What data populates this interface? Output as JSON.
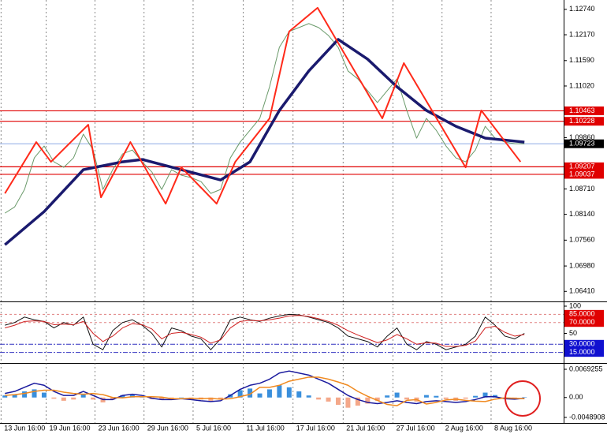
{
  "chart_data": [
    {
      "type": "line",
      "xlim": [
        -0.5,
        57
      ],
      "ylim": [
        1.0622,
        1.1295
      ],
      "xticks": [
        {
          "value": -0.4,
          "label": "13 Jun 16:00"
        },
        {
          "value": 4.2,
          "label": "19 Jun 16:00"
        },
        {
          "value": 9.2,
          "label": "23 Jun 16:00"
        },
        {
          "value": 14.2,
          "label": "29 Jun 16:00"
        },
        {
          "value": 19.2,
          "label": "5 Jul 16:00"
        },
        {
          "value": 24.3,
          "label": "11 Jul 16:00"
        },
        {
          "value": 29.4,
          "label": "17 Jul 16:00"
        },
        {
          "value": 34.5,
          "label": "21 Jul 16:00"
        },
        {
          "value": 39.6,
          "label": "27 Jul 16:00"
        },
        {
          "value": 44.6,
          "label": "2 Aug 16:00"
        },
        {
          "value": 49.6,
          "label": "8 Aug 16:00"
        }
      ],
      "yticks": [
        {
          "value": 1.1274,
          "label": "1.12740"
        },
        {
          "value": 1.1217,
          "label": "1.12170"
        },
        {
          "value": 1.1159,
          "label": "1.11590"
        },
        {
          "value": 1.1102,
          "label": "1.11020"
        },
        {
          "value": 1.0986,
          "label": "1.09860"
        },
        {
          "value": 1.0871,
          "label": "1.08710"
        },
        {
          "value": 1.0814,
          "label": "1.08140"
        },
        {
          "value": 1.0756,
          "label": "1.07560"
        },
        {
          "value": 1.0698,
          "label": "1.06980"
        },
        {
          "value": 1.0641,
          "label": "1.06410"
        }
      ],
      "levels": [
        {
          "value": 1.10463,
          "color": "#e00000",
          "box": "#e00000"
        },
        {
          "value": 1.10228,
          "color": "#e00000",
          "box": "#e00000"
        },
        {
          "value": 1.09723,
          "color": "#9ab4e8",
          "box": "#000000"
        },
        {
          "value": 1.09207,
          "color": "#e00000",
          "box": "#e00000"
        },
        {
          "value": 1.09037,
          "color": "#e00000",
          "box": "#e00000"
        }
      ],
      "x": [
        0,
        1,
        2,
        3,
        4,
        5,
        6,
        7,
        8,
        9,
        10,
        11,
        12,
        13,
        14,
        15,
        16,
        17,
        18,
        19,
        20,
        21,
        22,
        23,
        24,
        25,
        26,
        27,
        28,
        29,
        30,
        31,
        32,
        33,
        34,
        35,
        36,
        37,
        38,
        39,
        40,
        41,
        42,
        43,
        44,
        45,
        46,
        47,
        48,
        49,
        50,
        51,
        52,
        53
      ],
      "series": [
        {
          "color": "#6a9a6a",
          "line_width": 1,
          "values": [
            1.08166,
            1.08307,
            1.08697,
            1.09407,
            1.09673,
            1.09318,
            1.09194,
            1.09407,
            1.09939,
            1.09584,
            1.08697,
            1.09141,
            1.09495,
            1.09584,
            1.09318,
            1.09088,
            1.08697,
            1.09141,
            1.09017,
            1.08963,
            1.08875,
            1.08609,
            1.08697,
            1.09407,
            1.09761,
            1.10027,
            1.10293,
            1.11002,
            1.11889,
            1.12244,
            1.12332,
            1.12421,
            1.12332,
            1.12155,
            1.11889,
            1.11357,
            1.1118,
            1.10914,
            1.10648,
            1.10914,
            1.1118,
            1.10471,
            1.0985,
            1.10293,
            1.10027,
            1.09673,
            1.09407,
            1.09318,
            1.09584,
            1.10116,
            1.0985,
            1.09761,
            1.09726,
            1.09723
          ]
        },
        {
          "color": "#1a1a6e",
          "line_width": 3.5,
          "x": [
            0,
            4,
            8,
            12,
            14,
            18,
            22,
            25,
            28,
            31,
            34,
            37,
            40,
            43,
            46,
            49,
            53
          ],
          "values": [
            1.07456,
            1.08201,
            1.09141,
            1.09318,
            1.09371,
            1.09141,
            1.0891,
            1.09318,
            1.10471,
            1.11357,
            1.12066,
            1.11623,
            1.11002,
            1.10471,
            1.10116,
            1.0985,
            1.09761
          ]
        },
        {
          "color": "#ff2a1a",
          "line_width": 2,
          "x": [
            0,
            3.2,
            4.7,
            8.5,
            9.8,
            12.8,
            16.4,
            18,
            21.6,
            23.5,
            27,
            29,
            31.9,
            38.5,
            40.7,
            47,
            48.6,
            52.6
          ],
          "values": [
            1.08609,
            1.09761,
            1.09318,
            1.10151,
            1.0852,
            1.09761,
            1.08378,
            1.09194,
            1.08378,
            1.09318,
            1.10293,
            1.12244,
            1.12775,
            1.10293,
            1.11534,
            1.09194,
            1.10471,
            1.09318
          ]
        }
      ]
    },
    {
      "type": "line",
      "xlim": [
        -0.5,
        57
      ],
      "ylim": [
        0,
        100
      ],
      "yticks": [
        100,
        50
      ],
      "levels": [
        {
          "value": 85,
          "label": "85.0000",
          "color": "#e08080",
          "box": "#e00000"
        },
        {
          "value": 70,
          "label": "70.0000",
          "color": "#e08080",
          "box": "#e00000"
        },
        {
          "value": 30,
          "label": "30.0000",
          "color": "#3030c0",
          "box": "#1010d0"
        },
        {
          "value": 15,
          "label": "15.0000",
          "color": "#3030c0",
          "box": "#1010d0"
        }
      ],
      "x": [
        0,
        1,
        2,
        3,
        4,
        5,
        6,
        7,
        8,
        9,
        10,
        11,
        12,
        13,
        14,
        15,
        16,
        17,
        18,
        19,
        20,
        21,
        22,
        23,
        24,
        25,
        26,
        27,
        28,
        29,
        30,
        31,
        32,
        33,
        34,
        35,
        36,
        37,
        38,
        39,
        40,
        41,
        42,
        43,
        44,
        45,
        46,
        47,
        48,
        49,
        50,
        51,
        52,
        53
      ],
      "series": [
        {
          "color": "#111111",
          "line_width": 1,
          "values": [
            65,
            70,
            80,
            75,
            72,
            60,
            70,
            65,
            80,
            30,
            20,
            55,
            70,
            75,
            65,
            50,
            25,
            60,
            55,
            45,
            40,
            20,
            40,
            75,
            80,
            75,
            72,
            78,
            82,
            85,
            84,
            80,
            75,
            70,
            60,
            45,
            40,
            35,
            25,
            45,
            60,
            30,
            20,
            35,
            30,
            20,
            25,
            30,
            45,
            80,
            65,
            45,
            40,
            50
          ]
        },
        {
          "color": "#d02020",
          "line_width": 1,
          "values": [
            60,
            65,
            72,
            73,
            72,
            66,
            67,
            66,
            72,
            50,
            35,
            45,
            60,
            68,
            66,
            58,
            40,
            50,
            52,
            48,
            43,
            32,
            38,
            60,
            72,
            74,
            73,
            75,
            78,
            82,
            83,
            81,
            77,
            72,
            65,
            55,
            47,
            40,
            33,
            38,
            48,
            40,
            30,
            33,
            32,
            26,
            26,
            28,
            36,
            60,
            63,
            52,
            45,
            48
          ]
        }
      ]
    },
    {
      "type": "combo",
      "xlim": [
        -0.5,
        57
      ],
      "ylim": [
        -0.0048908,
        0.0069255
      ],
      "yticks": [
        0.0069255,
        {
          "value": 0,
          "label": "0.00"
        },
        -0.0048908
      ],
      "x": [
        0,
        1,
        2,
        3,
        4,
        5,
        6,
        7,
        8,
        9,
        10,
        11,
        12,
        13,
        14,
        15,
        16,
        17,
        18,
        19,
        20,
        21,
        22,
        23,
        24,
        25,
        26,
        27,
        28,
        29,
        30,
        31,
        32,
        33,
        34,
        35,
        36,
        37,
        38,
        39,
        40,
        41,
        42,
        43,
        44,
        45,
        46,
        47,
        48,
        49,
        50,
        51,
        52,
        53
      ],
      "series": [
        {
          "type": "bar",
          "color": "#3a8fdc",
          "negative_color": "#f4a88a",
          "values": [
            0.0005,
            0.0008,
            0.0015,
            0.002,
            0.0012,
            -0.0003,
            -0.0008,
            -0.0005,
            0.0007,
            -0.0005,
            -0.0012,
            -0.0005,
            0.0006,
            0.0006,
            0.0003,
            -0.0004,
            -0.0006,
            -0.0002,
            0,
            -0.0003,
            -0.0005,
            -0.0008,
            -0.0004,
            0.0008,
            0.0018,
            0.0022,
            0.001,
            0.002,
            0.003,
            0.0025,
            0.0015,
            0.0005,
            -0.0005,
            -0.001,
            -0.0018,
            -0.0025,
            -0.002,
            -0.0015,
            -0.0008,
            0.0005,
            0.0012,
            -0.0005,
            -0.001,
            0.0006,
            0.0004,
            -0.0004,
            -0.0008,
            -0.0003,
            0.0004,
            0.0012,
            0.0006,
            -0.0002,
            -0.0002,
            0.0001
          ]
        },
        {
          "type": "line",
          "color": "#1a1a9e",
          "line_width": 1.5,
          "values": [
            0.001,
            0.0015,
            0.0025,
            0.0035,
            0.003,
            0.0015,
            0.0005,
            0.0005,
            0.0015,
            0.0005,
            -0.0005,
            -0.0005,
            0.0005,
            0.0008,
            0.0005,
            -0.0002,
            -0.0005,
            -0.0005,
            -0.0003,
            -0.0005,
            -0.0008,
            -0.001,
            -0.0008,
            0.0005,
            0.002,
            0.003,
            0.0035,
            0.0045,
            0.006,
            0.0065,
            0.006,
            0.0055,
            0.0045,
            0.0035,
            0.002,
            0.0005,
            -0.0005,
            -0.0012,
            -0.0015,
            -0.0012,
            -0.0008,
            -0.0012,
            -0.0015,
            -0.001,
            -0.0008,
            -0.001,
            -0.0012,
            -0.001,
            -0.0005,
            0.0002,
            0.0002,
            -0.0003,
            -0.0004,
            -0.0002
          ]
        },
        {
          "type": "line",
          "color": "#f08a20",
          "line_width": 1.5,
          "values": [
            0.0005,
            0.0007,
            0.001,
            0.0015,
            0.0018,
            0.0018,
            0.0013,
            0.001,
            0.0008,
            0.001,
            0.0007,
            0,
            -0.0001,
            0.0002,
            0.0002,
            0.0002,
            0.0001,
            -0.0003,
            -0.0003,
            -0.0002,
            -0.0003,
            -0.0002,
            -0.0004,
            -0.0003,
            0.0002,
            0.0008,
            0.0025,
            0.0025,
            0.003,
            0.004,
            0.0045,
            0.005,
            0.005,
            0.0045,
            0.0038,
            0.003,
            0.0015,
            0.0003,
            -0.0007,
            -0.0017,
            -0.002,
            -0.0007,
            -0.0005,
            -0.0016,
            -0.0012,
            -0.0006,
            -0.0004,
            -0.0007,
            -0.0009,
            -0.001,
            -0.0004,
            -0.0001,
            -0.0002,
            -0.0003
          ]
        }
      ]
    }
  ]
}
